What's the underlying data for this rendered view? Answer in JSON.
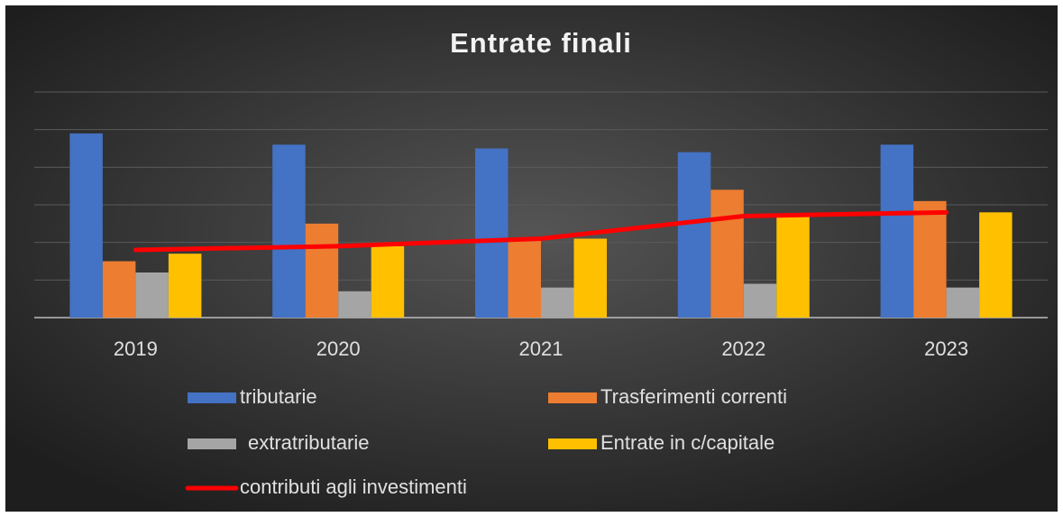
{
  "chart_data": {
    "type": "bar",
    "title": "Entrate finali",
    "categories": [
      "2019",
      "2020",
      "2021",
      "2022",
      "2023"
    ],
    "series": [
      {
        "name": "tributarie",
        "type": "bar",
        "color": "#4472c4",
        "values": [
          4.9,
          4.6,
          4.5,
          4.4,
          4.6
        ]
      },
      {
        "name": "Trasferimenti correnti",
        "type": "bar",
        "color": "#ed7d31",
        "values": [
          1.5,
          2.5,
          2.1,
          3.4,
          3.1
        ]
      },
      {
        "name": "extratributarie",
        "type": "bar",
        "color": "#a5a5a5",
        "values": [
          1.2,
          0.7,
          0.8,
          0.9,
          0.8
        ]
      },
      {
        "name": "Entrate in c/capitale",
        "type": "bar",
        "color": "#ffc000",
        "values": [
          1.7,
          1.9,
          2.1,
          2.7,
          2.8
        ]
      },
      {
        "name": "contributi agli investimenti",
        "type": "line",
        "color": "#ff0000",
        "values": [
          1.8,
          1.9,
          2.1,
          2.7,
          2.8
        ]
      }
    ],
    "ylim": [
      0,
      6
    ],
    "yticks": [
      0,
      1,
      2,
      3,
      4,
      5,
      6
    ],
    "grid": true
  }
}
